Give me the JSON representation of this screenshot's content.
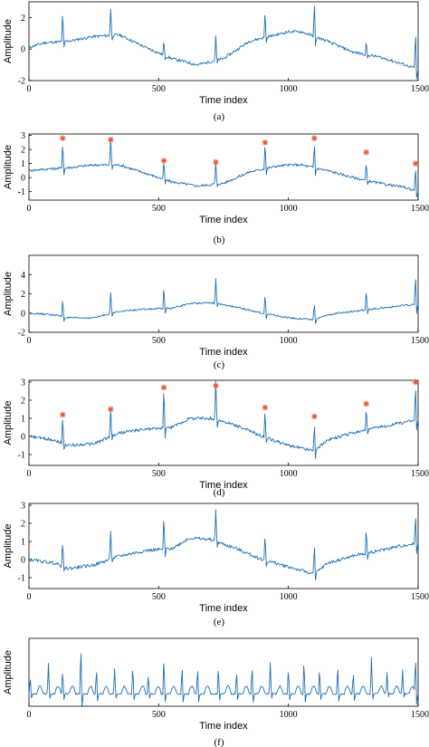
{
  "colors": {
    "line": "#1f6fb4",
    "marker": "#e8532b",
    "axis": "#000000"
  },
  "chart_data": [
    {
      "type": "line",
      "caption": "(a)",
      "xlabel": "Time index",
      "ylabel": "Amplitude",
      "xlim": [
        0,
        1500
      ],
      "ylim": [
        -2,
        3
      ],
      "xticks": [
        "0",
        "500",
        "1000",
        "1500"
      ],
      "yticks": [
        "-2",
        "0",
        "2"
      ],
      "base": [
        [
          0,
          0.1
        ],
        [
          60,
          0.4
        ],
        [
          150,
          0.5
        ],
        [
          250,
          0.8
        ],
        [
          350,
          0.9
        ],
        [
          450,
          0.1
        ],
        [
          550,
          -0.6
        ],
        [
          650,
          -1.0
        ],
        [
          750,
          -0.6
        ],
        [
          850,
          0.5
        ],
        [
          950,
          0.9
        ],
        [
          1000,
          1.1
        ],
        [
          1050,
          1.1
        ],
        [
          1150,
          0.5
        ],
        [
          1250,
          -0.2
        ],
        [
          1350,
          -0.5
        ],
        [
          1450,
          -1.0
        ],
        [
          1500,
          -1.3
        ]
      ],
      "beats": [
        [
          130,
          2.1
        ],
        [
          315,
          1.7
        ],
        [
          520,
          1.0
        ],
        [
          720,
          1.5
        ],
        [
          910,
          1.8
        ],
        [
          1100,
          2.5
        ],
        [
          1300,
          0.9
        ],
        [
          1490,
          2.6
        ]
      ],
      "markers": []
    },
    {
      "type": "line",
      "caption": "(b)",
      "xlabel": "Time index",
      "ylabel": "Amplitude",
      "xlim": [
        0,
        1500
      ],
      "ylim": [
        -1.6,
        3.1
      ],
      "xticks": [
        "0",
        "500",
        "1000",
        "1500"
      ],
      "yticks": [
        "-1",
        "0",
        "1",
        "2",
        "3"
      ],
      "base": [
        [
          0,
          0.5
        ],
        [
          60,
          0.6
        ],
        [
          150,
          0.7
        ],
        [
          250,
          0.9
        ],
        [
          350,
          0.9
        ],
        [
          450,
          0.3
        ],
        [
          550,
          -0.3
        ],
        [
          650,
          -0.6
        ],
        [
          750,
          -0.4
        ],
        [
          850,
          0.4
        ],
        [
          950,
          0.8
        ],
        [
          1000,
          0.9
        ],
        [
          1050,
          0.9
        ],
        [
          1150,
          0.5
        ],
        [
          1250,
          0.0
        ],
        [
          1350,
          -0.4
        ],
        [
          1450,
          -0.7
        ],
        [
          1500,
          -1.0
        ]
      ],
      "beats": [
        [
          130,
          2.1
        ],
        [
          315,
          1.9
        ],
        [
          520,
          1.5
        ],
        [
          720,
          1.6
        ],
        [
          910,
          2.1
        ],
        [
          1100,
          2.0
        ],
        [
          1300,
          1.4
        ],
        [
          1490,
          2.0
        ]
      ],
      "markers": [
        [
          130,
          2.8
        ],
        [
          315,
          2.7
        ],
        [
          520,
          1.2
        ],
        [
          720,
          1.1
        ],
        [
          910,
          2.5
        ],
        [
          1100,
          2.8
        ],
        [
          1300,
          1.8
        ],
        [
          1490,
          1.0
        ]
      ]
    },
    {
      "type": "line",
      "caption": "(c)",
      "xlabel": "Time index",
      "ylabel": "Amplitude",
      "xlim": [
        0,
        1500
      ],
      "ylim": [
        -2,
        6
      ],
      "xticks": [
        "0",
        "500",
        "1000",
        "1500"
      ],
      "yticks": [
        "-2",
        "0",
        "2",
        "4"
      ],
      "base": [
        [
          0,
          0.0
        ],
        [
          100,
          -0.2
        ],
        [
          150,
          -0.5
        ],
        [
          250,
          -0.5
        ],
        [
          350,
          0.2
        ],
        [
          450,
          0.4
        ],
        [
          550,
          0.5
        ],
        [
          620,
          1.0
        ],
        [
          700,
          1.1
        ],
        [
          800,
          0.6
        ],
        [
          900,
          0.0
        ],
        [
          1000,
          -0.5
        ],
        [
          1100,
          -0.7
        ],
        [
          1150,
          -0.2
        ],
        [
          1250,
          0.2
        ],
        [
          1350,
          0.5
        ],
        [
          1450,
          0.8
        ],
        [
          1500,
          0.9
        ]
      ],
      "beats": [
        [
          130,
          2.1
        ],
        [
          315,
          2.2
        ],
        [
          520,
          2.6
        ],
        [
          720,
          2.6
        ],
        [
          910,
          2.2
        ],
        [
          1100,
          2.0
        ],
        [
          1300,
          2.3
        ],
        [
          1490,
          3.5
        ]
      ],
      "markers": []
    },
    {
      "type": "line",
      "caption": "(d)",
      "xlabel": "Time index",
      "ylabel": "Amplitude",
      "xlim": [
        0,
        1500
      ],
      "ylim": [
        -1.6,
        3.1
      ],
      "xticks": [
        "0",
        "500",
        "1000",
        "1500"
      ],
      "yticks": [
        "-1",
        "0",
        "1",
        "2",
        "3"
      ],
      "base": [
        [
          0,
          0.0
        ],
        [
          100,
          -0.2
        ],
        [
          150,
          -0.5
        ],
        [
          250,
          -0.4
        ],
        [
          350,
          0.2
        ],
        [
          450,
          0.4
        ],
        [
          550,
          0.5
        ],
        [
          620,
          1.0
        ],
        [
          700,
          1.0
        ],
        [
          800,
          0.6
        ],
        [
          900,
          0.0
        ],
        [
          1000,
          -0.5
        ],
        [
          1100,
          -0.8
        ],
        [
          1150,
          -0.2
        ],
        [
          1250,
          0.2
        ],
        [
          1350,
          0.5
        ],
        [
          1450,
          0.8
        ],
        [
          1500,
          0.9
        ]
      ],
      "beats": [
        [
          130,
          1.6
        ],
        [
          315,
          1.6
        ],
        [
          520,
          2.4
        ],
        [
          720,
          2.2
        ],
        [
          910,
          1.6
        ],
        [
          1100,
          1.8
        ],
        [
          1300,
          1.4
        ],
        [
          1490,
          2.2
        ]
      ],
      "markers": [
        [
          130,
          1.2
        ],
        [
          315,
          1.5
        ],
        [
          520,
          2.7
        ],
        [
          720,
          2.8
        ],
        [
          910,
          1.6
        ],
        [
          1100,
          1.1
        ],
        [
          1300,
          1.8
        ],
        [
          1490,
          3.0
        ]
      ]
    },
    {
      "type": "line",
      "caption": "(e)",
      "xlabel": "Time index",
      "ylabel": "Amplitude",
      "xlim": [
        0,
        1500
      ],
      "ylim": [
        -1.6,
        3.1
      ],
      "xticks": [
        "0",
        "500",
        "1000",
        "1500"
      ],
      "yticks": [
        "-1",
        "0",
        "1",
        "2",
        "3"
      ],
      "base": [
        [
          0,
          0.0
        ],
        [
          100,
          -0.2
        ],
        [
          150,
          -0.5
        ],
        [
          250,
          -0.3
        ],
        [
          350,
          0.2
        ],
        [
          450,
          0.5
        ],
        [
          550,
          0.6
        ],
        [
          620,
          1.2
        ],
        [
          700,
          1.1
        ],
        [
          800,
          0.6
        ],
        [
          900,
          0.0
        ],
        [
          1000,
          -0.4
        ],
        [
          1100,
          -0.8
        ],
        [
          1150,
          -0.2
        ],
        [
          1250,
          0.2
        ],
        [
          1350,
          0.5
        ],
        [
          1450,
          0.8
        ],
        [
          1500,
          0.9
        ]
      ],
      "beats": [
        [
          130,
          1.6
        ],
        [
          315,
          1.6
        ],
        [
          520,
          2.0
        ],
        [
          720,
          1.8
        ],
        [
          910,
          1.6
        ],
        [
          1100,
          1.8
        ],
        [
          1300,
          1.4
        ],
        [
          1490,
          1.8
        ]
      ],
      "markers": []
    },
    {
      "type": "line",
      "caption": "(f)",
      "xlabel": "Time index",
      "ylabel": "Amplitude",
      "xlim": [
        0,
        1500
      ],
      "ylim": [
        -0.4,
        1.8
      ],
      "xticks": [
        "0",
        "500",
        "1000",
        "1500"
      ],
      "yticks": [],
      "base": [
        [
          0,
          0.0
        ],
        [
          1500,
          0.0
        ]
      ],
      "beats": [
        [
          5,
          0.6
        ],
        [
          75,
          1.0
        ],
        [
          130,
          0.85
        ],
        [
          200,
          1.7
        ],
        [
          260,
          0.9
        ],
        [
          330,
          0.8
        ],
        [
          400,
          1.0
        ],
        [
          460,
          0.7
        ],
        [
          520,
          1.3
        ],
        [
          590,
          1.0
        ],
        [
          650,
          0.95
        ],
        [
          730,
          1.0
        ],
        [
          800,
          0.8
        ],
        [
          860,
          1.0
        ],
        [
          930,
          1.0
        ],
        [
          1000,
          0.95
        ],
        [
          1060,
          1.2
        ],
        [
          1120,
          0.9
        ],
        [
          1190,
          1.0
        ],
        [
          1250,
          0.8
        ],
        [
          1320,
          1.2
        ],
        [
          1380,
          0.7
        ],
        [
          1440,
          0.8
        ],
        [
          1490,
          1.3
        ]
      ],
      "markers": []
    }
  ]
}
